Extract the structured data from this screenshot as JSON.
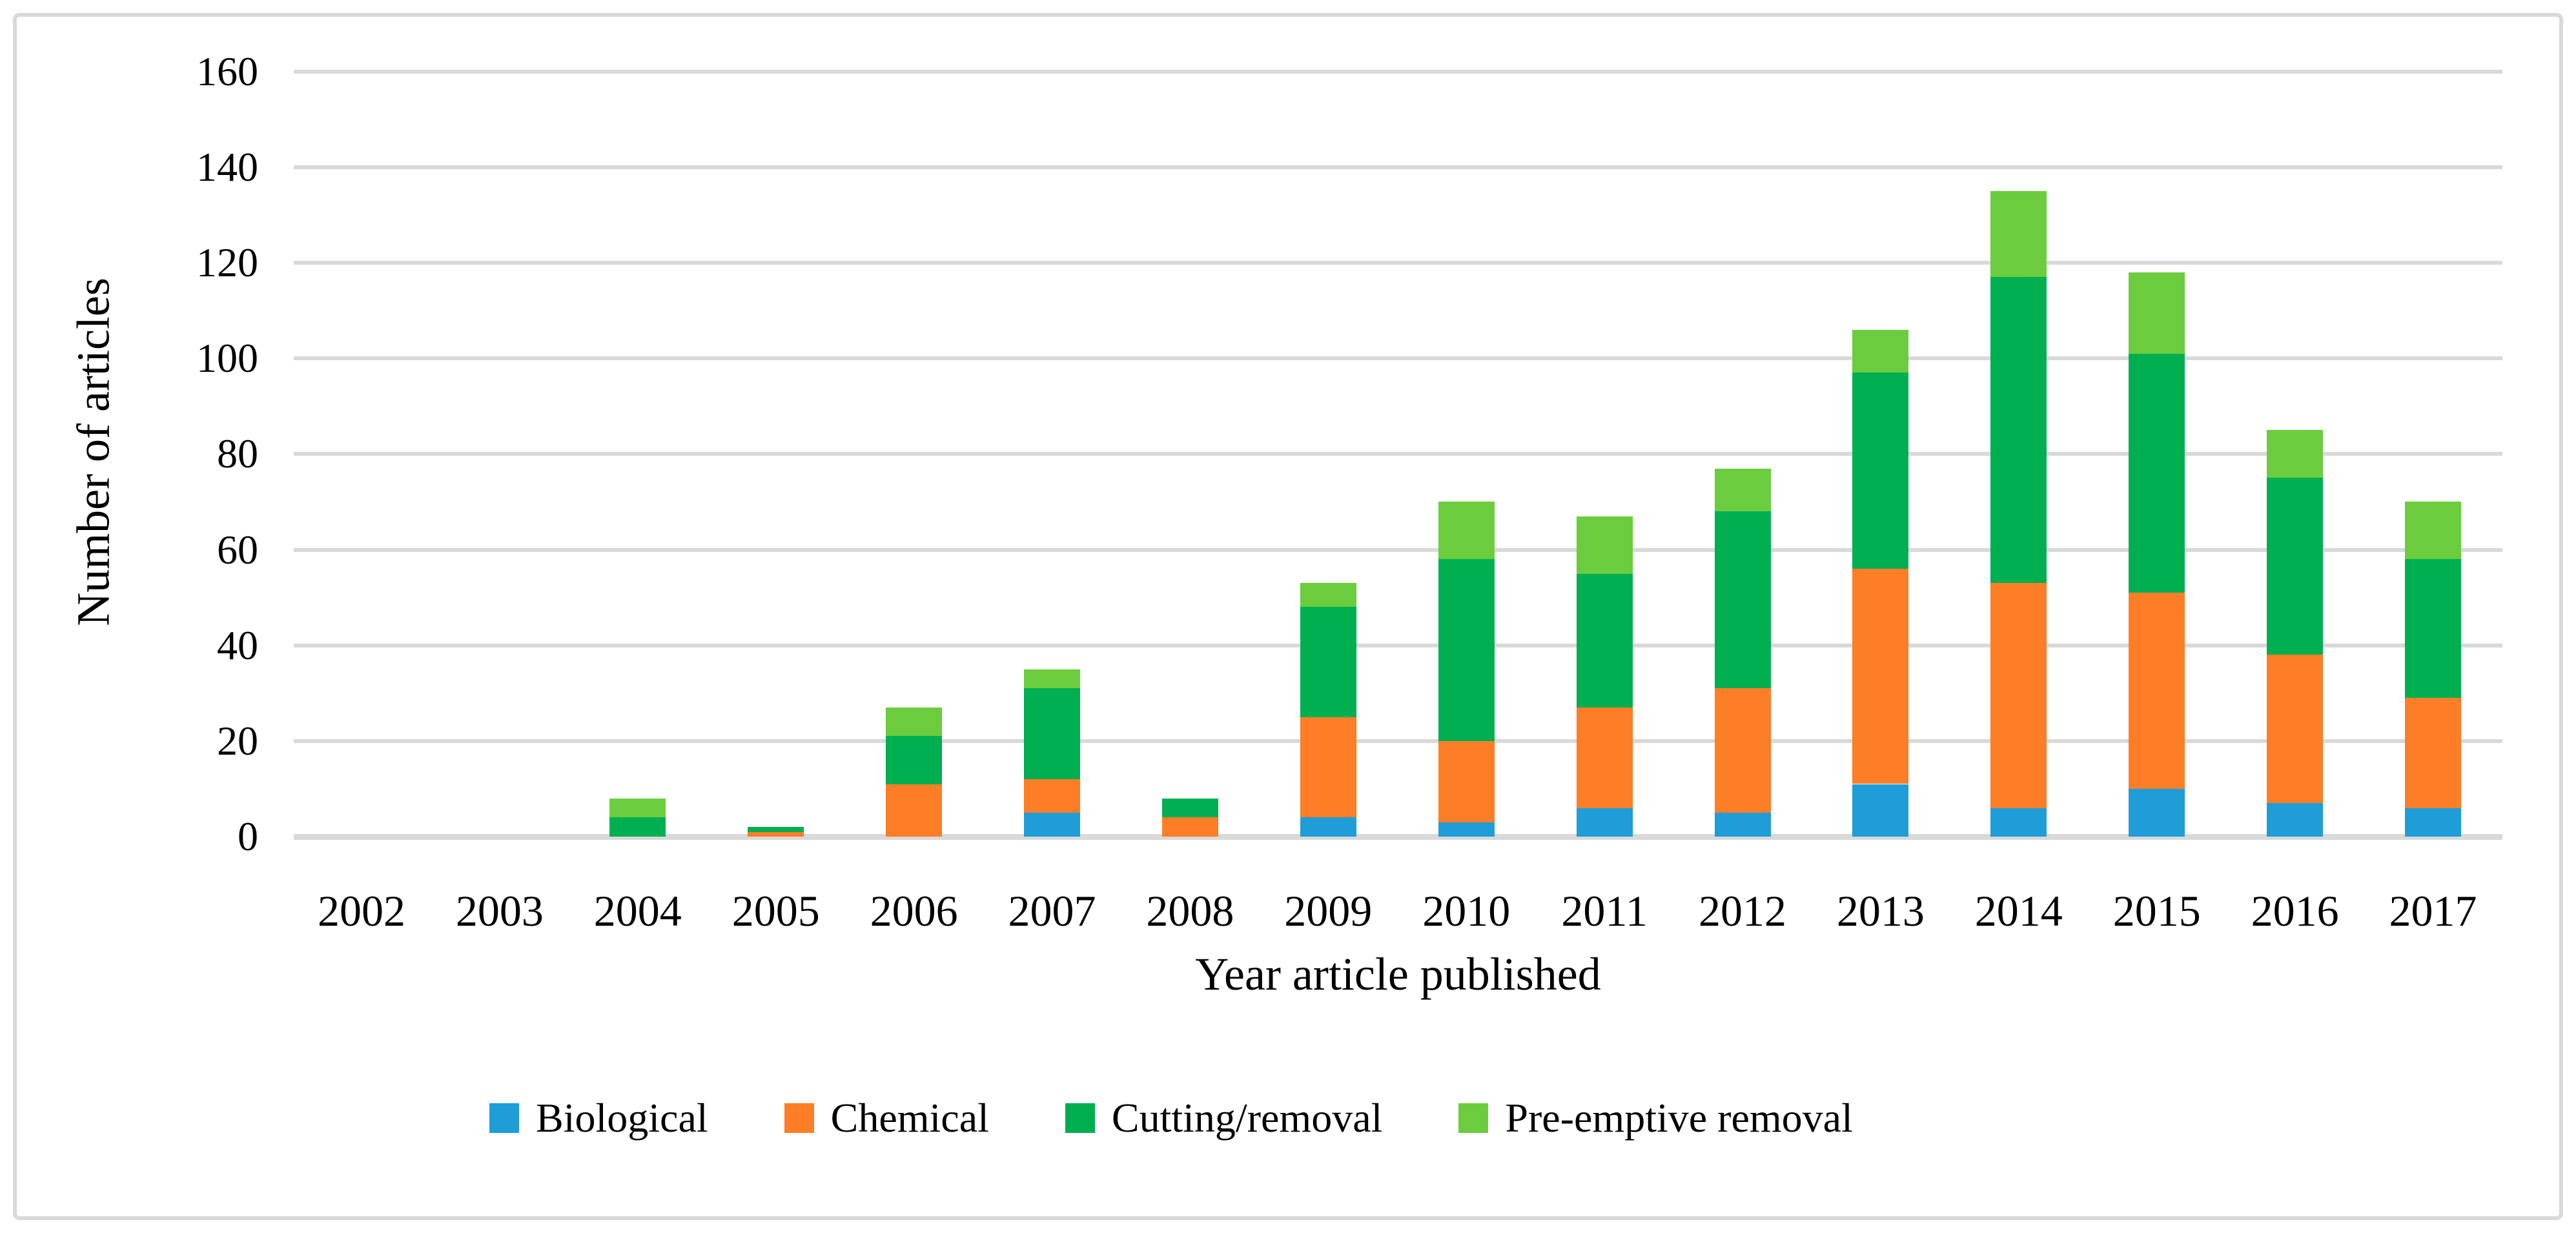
{
  "colors": {
    "background": "#ffffff",
    "gridline": "#d9d9d9",
    "frame_border": "#d9d9d9",
    "text": "#000000"
  },
  "chart_data": {
    "type": "bar",
    "stacked": true,
    "title": "",
    "xlabel": "Year article published",
    "ylabel": "Number of articles",
    "categories": [
      "2002",
      "2003",
      "2004",
      "2005",
      "2006",
      "2007",
      "2008",
      "2009",
      "2010",
      "2011",
      "2012",
      "2013",
      "2014",
      "2015",
      "2016",
      "2017"
    ],
    "series": [
      {
        "name": "Biological",
        "color": "#1f9dd8",
        "values": [
          0,
          0,
          0,
          0,
          0,
          5,
          0,
          4,
          3,
          6,
          5,
          11,
          6,
          10,
          7,
          6
        ]
      },
      {
        "name": "Chemical",
        "color": "#fd7e27",
        "values": [
          0,
          0,
          0,
          1,
          11,
          7,
          4,
          21,
          17,
          21,
          26,
          45,
          47,
          41,
          31,
          23
        ]
      },
      {
        "name": "Cutting/removal",
        "color": "#00af50",
        "values": [
          0,
          0,
          4,
          1,
          10,
          19,
          4,
          23,
          38,
          28,
          37,
          41,
          64,
          50,
          37,
          29
        ]
      },
      {
        "name": "Pre-emptive removal",
        "color": "#6bcd3e",
        "values": [
          0,
          0,
          4,
          0,
          6,
          4,
          0,
          5,
          12,
          12,
          9,
          9,
          18,
          17,
          10,
          12
        ]
      }
    ],
    "totals": [
      0,
      0,
      8,
      2,
      27,
      35,
      8,
      53,
      70,
      67,
      77,
      106,
      135,
      118,
      85,
      70
    ],
    "ylim": [
      0,
      160
    ],
    "ytick_step": 20,
    "yticks": [
      "0",
      "20",
      "40",
      "60",
      "80",
      "100",
      "120",
      "140",
      "160"
    ],
    "grid": true,
    "legend_position": "bottom"
  }
}
